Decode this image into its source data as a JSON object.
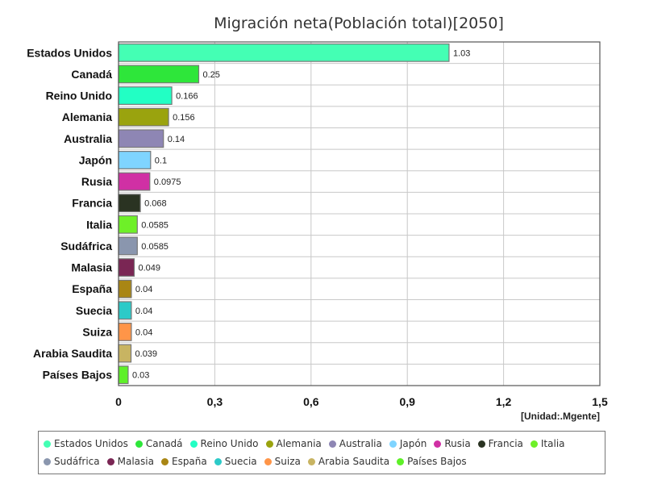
{
  "chart_data": {
    "type": "bar",
    "orientation": "horizontal",
    "title": "Migración neta(Población total)[2050]",
    "unit_label": "[Unidad:.Mgente]",
    "categories": [
      "Estados Unidos",
      "Canadá",
      "Reino Unido",
      "Alemania",
      "Australia",
      "Japón",
      "Rusia",
      "Francia",
      "Italia",
      "Sudáfrica",
      "Malasia",
      "España",
      "Suecia",
      "Suiza",
      "Arabia Saudita",
      "Países Bajos"
    ],
    "values": [
      1.03,
      0.25,
      0.166,
      0.156,
      0.14,
      0.1,
      0.0975,
      0.068,
      0.0585,
      0.0585,
      0.049,
      0.04,
      0.04,
      0.04,
      0.039,
      0.03
    ],
    "value_labels": [
      "1.03",
      "0.25",
      "0.166",
      "0.156",
      "0.14",
      "0.1",
      "0.0975",
      "0.068",
      "0.0585",
      "0.0585",
      "0.049",
      "0.04",
      "0.04",
      "0.04",
      "0.039",
      "0.03"
    ],
    "colors": [
      "#44ffb4",
      "#2ee63a",
      "#22ffc4",
      "#9aa30e",
      "#8e86b4",
      "#7fd4ff",
      "#d030a4",
      "#2a3322",
      "#6ef028",
      "#8a96ae",
      "#7a2654",
      "#a98614",
      "#2ccac8",
      "#ff9548",
      "#c8b462",
      "#5ef028"
    ],
    "xlim": [
      0,
      1.5
    ],
    "xticks": [
      0,
      0.3,
      0.6,
      0.9,
      1.2,
      1.5
    ],
    "xtick_labels": [
      "0",
      "0,3",
      "0,6",
      "0,9",
      "1,2",
      "1,5"
    ],
    "grid": true,
    "legend_position": "bottom"
  }
}
